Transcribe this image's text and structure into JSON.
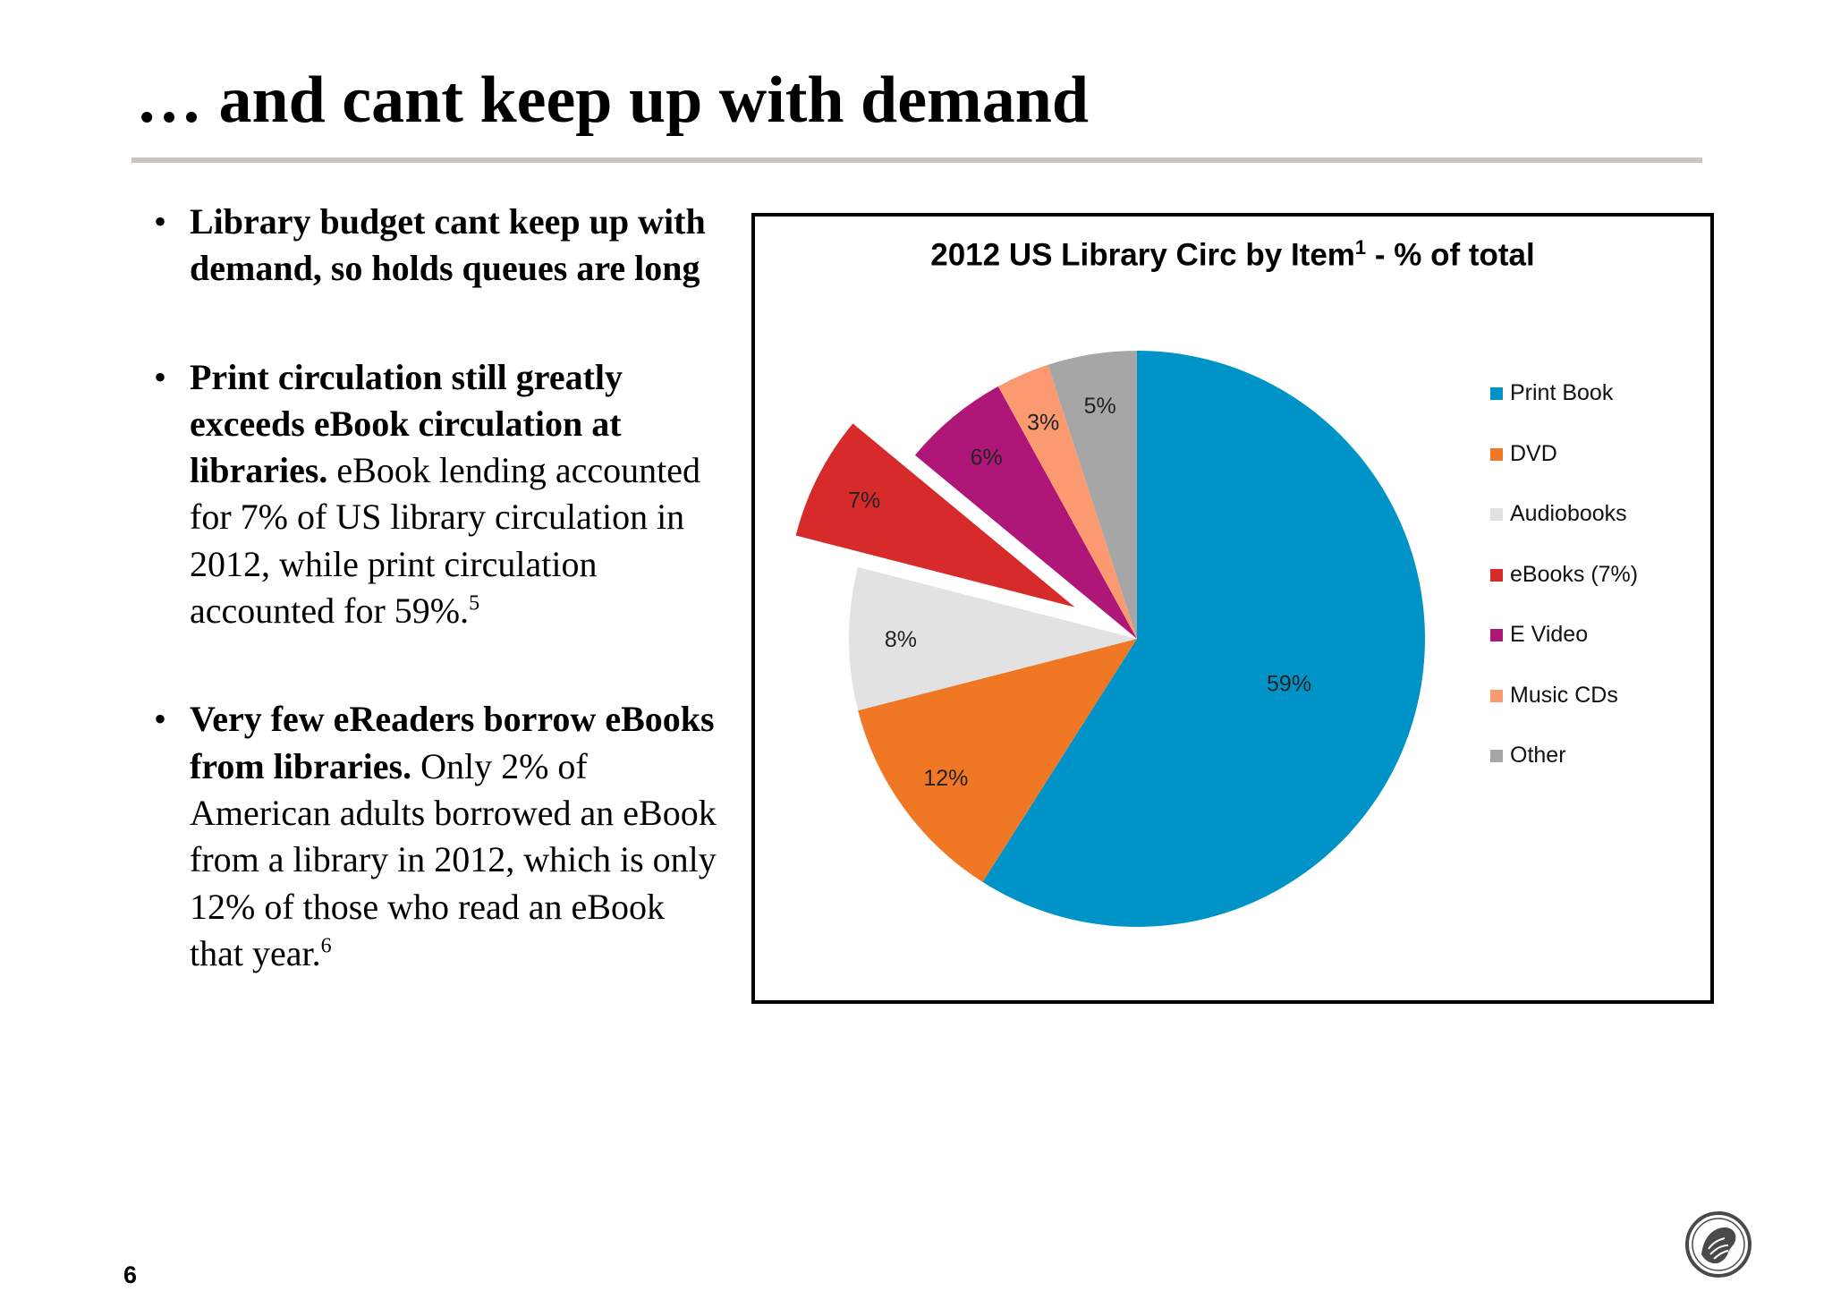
{
  "slide": {
    "title": "… and cant keep up with demand",
    "page_number": "6",
    "logo_icon": "nypl-lion-logo-icon"
  },
  "bullets": [
    {
      "bold": "Library budget cant keep up with demand, so holds queues are long",
      "text": "",
      "footnote": ""
    },
    {
      "bold": "Print circulation still greatly exceeds eBook circulation at libraries.",
      "text": " eBook lending accounted for 7% of US library circulation in 2012, while print circulation accounted for 59%.",
      "footnote": "5"
    },
    {
      "bold": "Very few eReaders borrow eBooks from libraries.",
      "text": " Only 2% of American adults borrowed an eBook from a library in 2012, which is only 12% of those who read an eBook that year.",
      "footnote": "6"
    }
  ],
  "chart_data": {
    "type": "pie",
    "title": "2012 US Library Circ by Item",
    "title_footnote": "1",
    "title_suffix": " - % of total",
    "legend_position": "right",
    "slices": [
      {
        "name": "Print Book",
        "value": 59,
        "label": "59%",
        "color": "#0093c8",
        "exploded": false
      },
      {
        "name": "DVD",
        "value": 12,
        "label": "12%",
        "color": "#f07723",
        "exploded": false
      },
      {
        "name": "Audiobooks",
        "value": 8,
        "label": "8%",
        "color": "#e3e2e3",
        "exploded": false
      },
      {
        "name": "eBooks (7%)",
        "value": 7,
        "label": "7%",
        "color": "#d72b2b",
        "exploded": true
      },
      {
        "name": "E Video",
        "value": 6,
        "label": "6%",
        "color": "#ae1678",
        "exploded": false
      },
      {
        "name": "Music CDs",
        "value": 3,
        "label": "3%",
        "color": "#fb9a70",
        "exploded": false
      },
      {
        "name": "Other",
        "value": 5,
        "label": "5%",
        "color": "#a7a6a7",
        "exploded": false
      }
    ]
  }
}
